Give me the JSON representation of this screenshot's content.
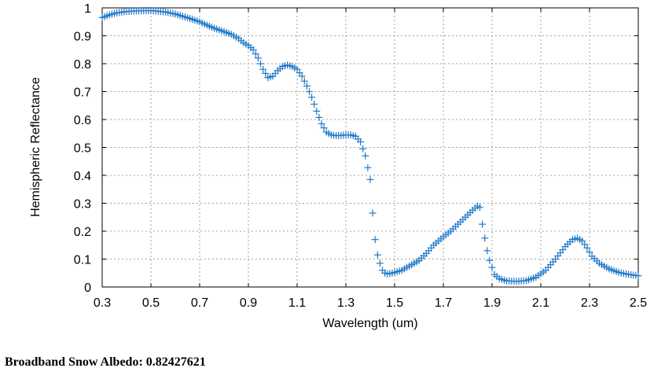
{
  "chart_data": {
    "type": "scatter",
    "xlabel": "Wavelength (um)",
    "ylabel": "Hemispheric Reflectance",
    "xlim": [
      0.3,
      2.5
    ],
    "ylim": [
      0,
      1
    ],
    "xticks": [
      "0.3",
      "0.5",
      "0.7",
      "0.9",
      "1.1",
      "1.3",
      "1.5",
      "1.7",
      "1.9",
      "2.1",
      "2.3",
      "2.5"
    ],
    "yticks": [
      "0",
      "0.1",
      "0.2",
      "0.3",
      "0.4",
      "0.5",
      "0.6",
      "0.7",
      "0.8",
      "0.9",
      "1"
    ],
    "grid": true,
    "marker": "+",
    "color": "#1f78c8",
    "x": [
      0.3,
      0.33,
      0.36,
      0.4,
      0.44,
      0.48,
      0.5,
      0.53,
      0.56,
      0.6,
      0.63,
      0.66,
      0.7,
      0.73,
      0.76,
      0.8,
      0.83,
      0.86,
      0.88,
      0.9,
      0.92,
      0.94,
      0.96,
      0.98,
      1.0,
      1.02,
      1.04,
      1.06,
      1.08,
      1.1,
      1.12,
      1.14,
      1.16,
      1.18,
      1.2,
      1.22,
      1.24,
      1.26,
      1.28,
      1.3,
      1.32,
      1.34,
      1.36,
      1.38,
      1.4,
      1.41,
      1.42,
      1.43,
      1.44,
      1.45,
      1.46,
      1.47,
      1.48,
      1.5,
      1.53,
      1.56,
      1.6,
      1.63,
      1.66,
      1.7,
      1.73,
      1.76,
      1.79,
      1.82,
      1.84,
      1.85,
      1.86,
      1.87,
      1.88,
      1.89,
      1.9,
      1.91,
      1.93,
      1.96,
      2.0,
      2.04,
      2.08,
      2.12,
      2.16,
      2.2,
      2.23,
      2.25,
      2.27,
      2.29,
      2.31,
      2.34,
      2.38,
      2.42,
      2.46,
      2.5
    ],
    "y": [
      0.965,
      0.975,
      0.982,
      0.987,
      0.989,
      0.99,
      0.99,
      0.988,
      0.985,
      0.978,
      0.97,
      0.962,
      0.95,
      0.938,
      0.927,
      0.915,
      0.905,
      0.89,
      0.875,
      0.865,
      0.85,
      0.82,
      0.78,
      0.75,
      0.755,
      0.775,
      0.79,
      0.795,
      0.79,
      0.78,
      0.755,
      0.72,
      0.68,
      0.63,
      0.585,
      0.555,
      0.545,
      0.542,
      0.543,
      0.545,
      0.545,
      0.54,
      0.52,
      0.47,
      0.385,
      0.265,
      0.17,
      0.115,
      0.085,
      0.06,
      0.05,
      0.047,
      0.048,
      0.052,
      0.06,
      0.075,
      0.095,
      0.12,
      0.15,
      0.18,
      0.2,
      0.225,
      0.25,
      0.275,
      0.29,
      0.285,
      0.225,
      0.175,
      0.13,
      0.095,
      0.07,
      0.045,
      0.03,
      0.022,
      0.02,
      0.023,
      0.035,
      0.06,
      0.1,
      0.145,
      0.17,
      0.175,
      0.165,
      0.14,
      0.11,
      0.085,
      0.065,
      0.052,
      0.045,
      0.04
    ]
  },
  "albedo_text": "Broadband Snow Albedo: 0.82427621"
}
